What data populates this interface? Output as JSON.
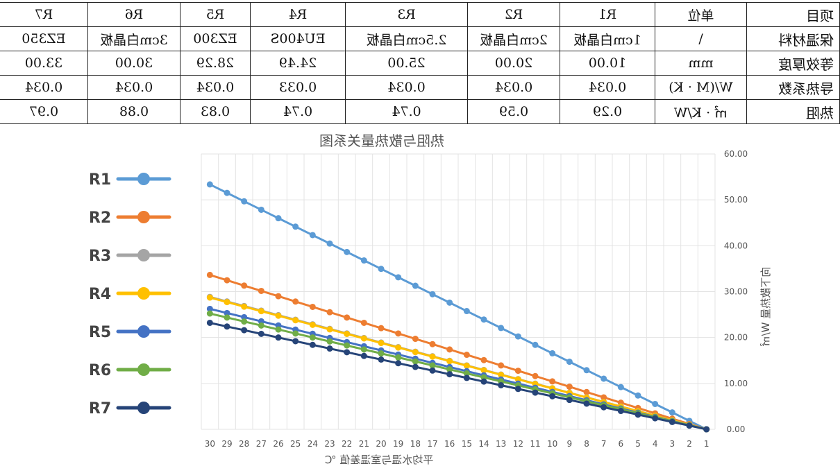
{
  "table": {
    "header": [
      "项目",
      "单位",
      "R1",
      "R2",
      "R3",
      "R4",
      "R5",
      "R6",
      "R7"
    ],
    "rows": [
      [
        "保温材料",
        "\\",
        "1cm白晶板",
        "2cm白晶板",
        "2.5cm白晶板",
        "EU400S",
        "EZ300",
        "3cm白晶板",
        "EZ350"
      ],
      [
        "等效厚度",
        "mm",
        "10.00",
        "20.00",
        "25.00",
        "24.49",
        "28.29",
        "30.00",
        "33.00"
      ],
      [
        "导热系数",
        "W/(M · K)",
        "0.034",
        "0.034",
        "0.034",
        "0.033",
        "0.034",
        "0.034",
        "0.034"
      ],
      [
        "热阻",
        "㎡ · K/W",
        "0.29",
        "0.59",
        "0.74",
        "0.74",
        "0.83",
        "0.88",
        "0.97"
      ]
    ]
  },
  "chart_data": {
    "type": "line",
    "title": "热阻与散热量关系图",
    "xlabel": "平均水温与室温差值 ℃",
    "ylabel": "向下散热量 W/㎡",
    "x": [
      1,
      2,
      3,
      4,
      5,
      6,
      7,
      8,
      9,
      10,
      11,
      12,
      13,
      14,
      15,
      16,
      17,
      18,
      19,
      20,
      21,
      22,
      23,
      24,
      25,
      26,
      27,
      28,
      29,
      30
    ],
    "ylim": [
      0,
      60
    ],
    "yticks": [
      "0.00",
      "10.00",
      "20.00",
      "30.00",
      "40.00",
      "50.00",
      "60.00"
    ],
    "grid": true,
    "legend_position": "left",
    "series": [
      {
        "name": "R1",
        "color": "#5B9BD5",
        "slope": 1.84
      },
      {
        "name": "R2",
        "color": "#ED7D31",
        "slope": 1.16
      },
      {
        "name": "R3",
        "color": "#A5A5A5",
        "slope": 0.995
      },
      {
        "name": "R4",
        "color": "#FFC000",
        "slope": 0.99
      },
      {
        "name": "R5",
        "color": "#4472C4",
        "slope": 0.905
      },
      {
        "name": "R6",
        "color": "#70AD47",
        "slope": 0.87
      },
      {
        "name": "R7",
        "color": "#264478",
        "slope": 0.8
      }
    ]
  }
}
